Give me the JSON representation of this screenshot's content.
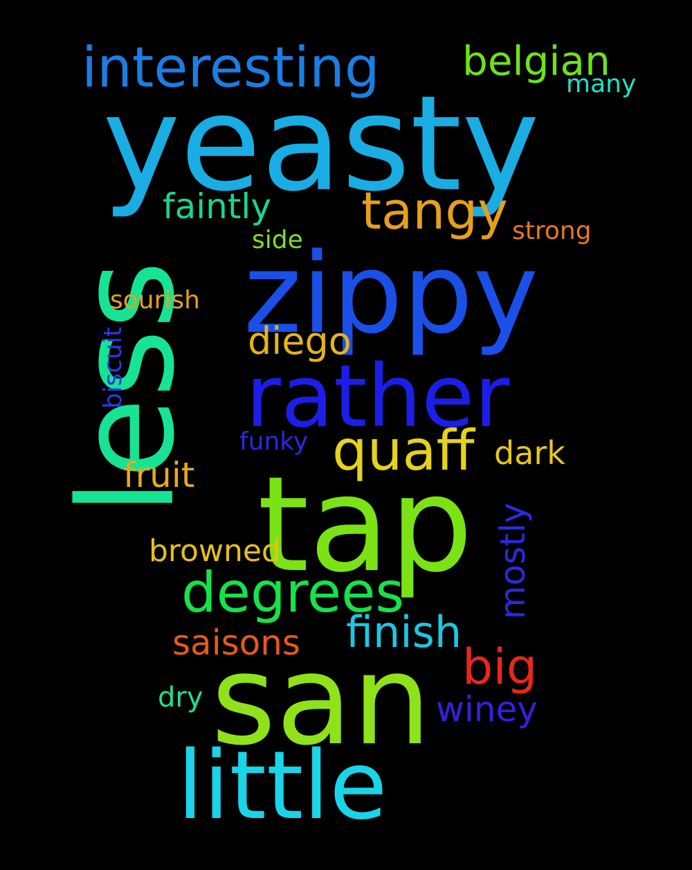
{
  "background": "#000000",
  "words": [
    {
      "text": "yeasty",
      "color": "#1aade4"
    },
    {
      "text": "less",
      "color": "#16e494",
      "orientation": "vertical"
    },
    {
      "text": "zippy",
      "color": "#1a50e8"
    },
    {
      "text": "tap",
      "color": "#7be216"
    },
    {
      "text": "san",
      "color": "#8fe21a"
    },
    {
      "text": "little",
      "color": "#1ad4e8"
    },
    {
      "text": "rather",
      "color": "#1c1ee8"
    },
    {
      "text": "interesting",
      "color": "#1a7ee4"
    },
    {
      "text": "belgian",
      "color": "#6ee21a"
    },
    {
      "text": "many",
      "color": "#1ae4c8"
    },
    {
      "text": "tangy",
      "color": "#e6a01a"
    },
    {
      "text": "faintly",
      "color": "#1ad68c"
    },
    {
      "text": "strong",
      "color": "#e67a1a"
    },
    {
      "text": "side",
      "color": "#7ee21a"
    },
    {
      "text": "sourish",
      "color": "#e6a21a"
    },
    {
      "text": "diego",
      "color": "#e6b41a"
    },
    {
      "text": "biscuit",
      "color": "#2a3ae0",
      "orientation": "vertical"
    },
    {
      "text": "quaff",
      "color": "#e6d21a"
    },
    {
      "text": "funky",
      "color": "#2a28e4"
    },
    {
      "text": "dark",
      "color": "#e6c81a"
    },
    {
      "text": "fruit",
      "color": "#e6aa1a"
    },
    {
      "text": "mostly",
      "color": "#2a2ae0",
      "orientation": "vertical"
    },
    {
      "text": "browned",
      "color": "#e6c01a"
    },
    {
      "text": "degrees",
      "color": "#16e24a"
    },
    {
      "text": "finish",
      "color": "#1ac8e4"
    },
    {
      "text": "saisons",
      "color": "#e65a1a"
    },
    {
      "text": "big",
      "color": "#e6281a"
    },
    {
      "text": "dry",
      "color": "#1ae48a"
    },
    {
      "text": "winey",
      "color": "#3a1ee0"
    }
  ]
}
